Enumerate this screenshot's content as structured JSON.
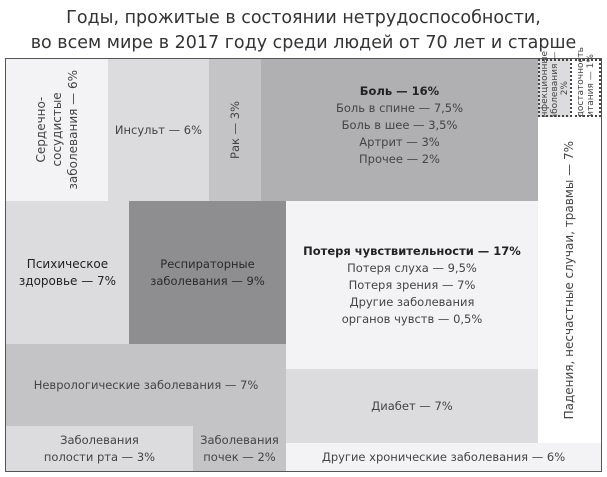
{
  "title": [
    "Годы, прожитые в состоянии нетрудоспособности,",
    "во всем мире в 2017 году среди людей от 70 лет и старше"
  ],
  "colors": {
    "lightest": "#f3f3f5",
    "light": "#dcdcde",
    "mid": "#c4c4c6",
    "dark": "#b0b0b2",
    "darkest": "#8e8e90"
  },
  "blocks": {
    "cardio": [
      "Сердечно-",
      "сосудистые",
      "заболевания — 6%"
    ],
    "stroke": "Инсульт — 6%",
    "cancer": "Рак — 3%",
    "pain": {
      "head": "Боль — 16%",
      "items": [
        "Боль в спине — 7,5%",
        "Боль в шее — 3,5%",
        "Артрит — 3%",
        "Прочее — 2%"
      ]
    },
    "infect": [
      "Инфекционные",
      "заболевания — 2%"
    ],
    "malnut": [
      "Недостаточность",
      "питания — 1%"
    ],
    "mental": [
      "Психическое",
      "здоровье — 7%"
    ],
    "resp": [
      "Респираторные",
      "заболевания — 9%"
    ],
    "sense": {
      "head": "Потеря чувствительности — 17%",
      "items": [
        "Потеря слуха — 9,5%",
        "Потеря зрения — 7%",
        "Другие заболевания",
        "органов чувств — 0,5%"
      ]
    },
    "falls": "Падения, несчастные случаи, травмы — 7%",
    "neuro": "Неврологические заболевания — 7%",
    "diabetes": "Диабет — 7%",
    "oral": [
      "Заболевания",
      "полости рта — 3%"
    ],
    "kidney": [
      "Заболевания",
      "почек — 2%"
    ],
    "other": "Другие хронические заболевания — 6%"
  }
}
